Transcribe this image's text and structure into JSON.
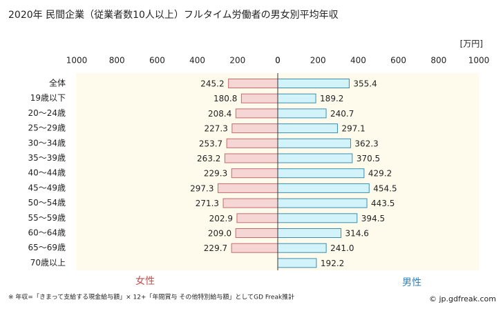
{
  "chart_data": {
    "type": "butterfly",
    "title": "2020年 民間企業（従業者数10人以上）フルタイム労働者の男女別平均年収",
    "x_unit_label": "[万円]",
    "categories": [
      "全体",
      "19歳以下",
      "20～24歳",
      "25～29歳",
      "30～34歳",
      "35～39歳",
      "40～44歳",
      "45～49歳",
      "50～54歳",
      "55～59歳",
      "60～64歳",
      "65～69歳",
      "70歳以上"
    ],
    "series": [
      {
        "name": "女性",
        "side": "left",
        "color": "#f6d5d5",
        "stroke": "#c46a6a",
        "label_color": "#c0504d",
        "values": [
          245.2,
          180.8,
          208.4,
          227.3,
          253.7,
          263.2,
          229.3,
          297.3,
          271.3,
          202.9,
          209.0,
          229.7,
          null
        ],
        "value_labels": [
          "245.2",
          "180.8",
          "208.4",
          "227.3",
          "253.7",
          "263.2",
          "229.3",
          "297.3",
          "271.3",
          "202.9",
          "209.0",
          "229.7",
          null
        ]
      },
      {
        "name": "男性",
        "side": "right",
        "color": "#d3f3fb",
        "stroke": "#3a8db0",
        "label_color": "#2f80bb",
        "values": [
          355.4,
          189.2,
          240.7,
          297.1,
          362.3,
          370.5,
          429.2,
          454.5,
          443.5,
          394.5,
          314.6,
          241.0,
          192.2
        ],
        "value_labels": [
          "355.4",
          "189.2",
          "240.7",
          "297.1",
          "362.3",
          "370.5",
          "429.2",
          "454.5",
          "443.5",
          "394.5",
          "314.6",
          "241.0",
          "192.2"
        ]
      }
    ],
    "xlim": [
      0,
      1000
    ],
    "xticks": [
      0,
      200,
      400,
      600,
      800,
      1000
    ],
    "grid": false,
    "note": "※ 年収=「きまって支給する現金給与額」× 12+「年間賞与 その他特別給与額」としてGD Freak推計",
    "source": "© jp.gdfreak.com"
  }
}
